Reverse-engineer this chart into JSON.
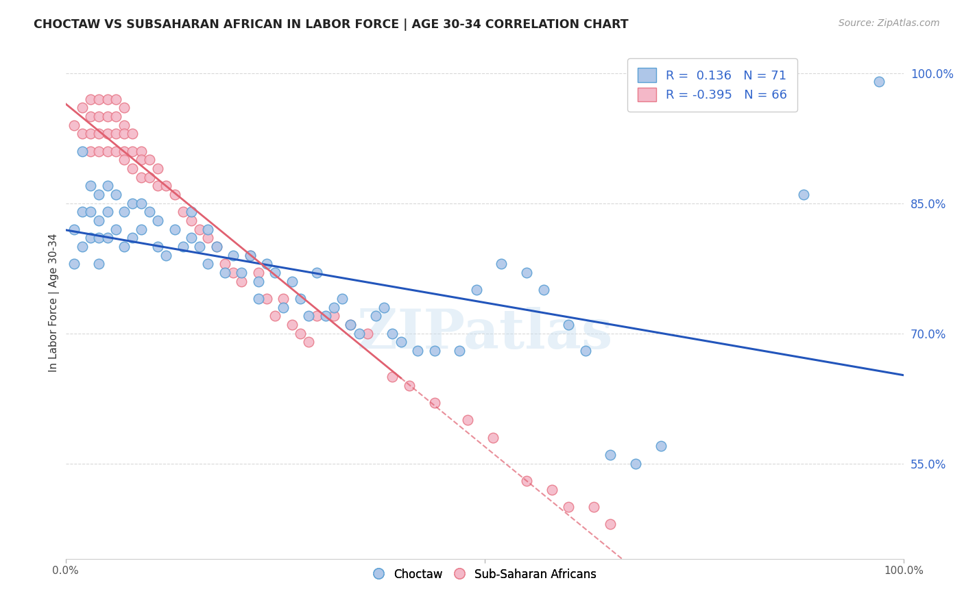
{
  "title": "CHOCTAW VS SUBSAHARAN AFRICAN IN LABOR FORCE | AGE 30-34 CORRELATION CHART",
  "source": "Source: ZipAtlas.com",
  "ylabel": "In Labor Force | Age 30-34",
  "xlim": [
    0.0,
    1.0
  ],
  "ylim": [
    0.44,
    1.03
  ],
  "yticks": [
    0.55,
    0.7,
    0.85,
    1.0
  ],
  "ytick_labels": [
    "55.0%",
    "70.0%",
    "85.0%",
    "100.0%"
  ],
  "background_color": "#ffffff",
  "grid_color": "#d8d8d8",
  "choctaw_color": "#aec6e8",
  "choctaw_edge_color": "#5a9fd4",
  "subsaharan_color": "#f4b8c8",
  "subsaharan_edge_color": "#e87a8a",
  "r_choctaw": 0.136,
  "n_choctaw": 71,
  "r_subsaharan": -0.395,
  "n_subsaharan": 66,
  "legend_r_color": "#3366cc",
  "watermark": "ZIPatlas",
  "choctaw_x": [
    0.01,
    0.01,
    0.02,
    0.02,
    0.02,
    0.03,
    0.03,
    0.03,
    0.04,
    0.04,
    0.04,
    0.04,
    0.05,
    0.05,
    0.05,
    0.06,
    0.06,
    0.07,
    0.07,
    0.08,
    0.08,
    0.09,
    0.09,
    0.1,
    0.11,
    0.11,
    0.12,
    0.13,
    0.14,
    0.15,
    0.15,
    0.16,
    0.17,
    0.17,
    0.18,
    0.19,
    0.2,
    0.21,
    0.22,
    0.23,
    0.23,
    0.24,
    0.25,
    0.26,
    0.27,
    0.28,
    0.29,
    0.3,
    0.31,
    0.32,
    0.33,
    0.34,
    0.35,
    0.37,
    0.38,
    0.39,
    0.4,
    0.42,
    0.44,
    0.47,
    0.49,
    0.52,
    0.55,
    0.57,
    0.6,
    0.62,
    0.65,
    0.68,
    0.71,
    0.88,
    0.97
  ],
  "choctaw_y": [
    0.82,
    0.78,
    0.91,
    0.84,
    0.8,
    0.87,
    0.84,
    0.81,
    0.86,
    0.83,
    0.81,
    0.78,
    0.87,
    0.84,
    0.81,
    0.86,
    0.82,
    0.84,
    0.8,
    0.85,
    0.81,
    0.85,
    0.82,
    0.84,
    0.83,
    0.8,
    0.79,
    0.82,
    0.8,
    0.84,
    0.81,
    0.8,
    0.82,
    0.78,
    0.8,
    0.77,
    0.79,
    0.77,
    0.79,
    0.76,
    0.74,
    0.78,
    0.77,
    0.73,
    0.76,
    0.74,
    0.72,
    0.77,
    0.72,
    0.73,
    0.74,
    0.71,
    0.7,
    0.72,
    0.73,
    0.7,
    0.69,
    0.68,
    0.68,
    0.68,
    0.75,
    0.78,
    0.77,
    0.75,
    0.71,
    0.68,
    0.56,
    0.55,
    0.57,
    0.86,
    0.99
  ],
  "subsaharan_x": [
    0.01,
    0.02,
    0.02,
    0.03,
    0.03,
    0.03,
    0.03,
    0.04,
    0.04,
    0.04,
    0.04,
    0.05,
    0.05,
    0.05,
    0.05,
    0.06,
    0.06,
    0.06,
    0.06,
    0.07,
    0.07,
    0.07,
    0.07,
    0.07,
    0.08,
    0.08,
    0.08,
    0.09,
    0.09,
    0.09,
    0.1,
    0.1,
    0.11,
    0.11,
    0.12,
    0.13,
    0.14,
    0.15,
    0.16,
    0.17,
    0.18,
    0.19,
    0.2,
    0.21,
    0.22,
    0.23,
    0.24,
    0.25,
    0.26,
    0.27,
    0.28,
    0.29,
    0.3,
    0.32,
    0.34,
    0.36,
    0.39,
    0.41,
    0.44,
    0.48,
    0.51,
    0.55,
    0.58,
    0.6,
    0.63,
    0.65
  ],
  "subsaharan_y": [
    0.94,
    0.96,
    0.93,
    0.97,
    0.95,
    0.93,
    0.91,
    0.97,
    0.95,
    0.93,
    0.91,
    0.97,
    0.95,
    0.93,
    0.91,
    0.97,
    0.95,
    0.93,
    0.91,
    0.96,
    0.94,
    0.93,
    0.91,
    0.9,
    0.93,
    0.91,
    0.89,
    0.91,
    0.9,
    0.88,
    0.9,
    0.88,
    0.89,
    0.87,
    0.87,
    0.86,
    0.84,
    0.83,
    0.82,
    0.81,
    0.8,
    0.78,
    0.77,
    0.76,
    0.79,
    0.77,
    0.74,
    0.72,
    0.74,
    0.71,
    0.7,
    0.69,
    0.72,
    0.72,
    0.71,
    0.7,
    0.65,
    0.64,
    0.62,
    0.6,
    0.58,
    0.53,
    0.52,
    0.5,
    0.5,
    0.48
  ]
}
